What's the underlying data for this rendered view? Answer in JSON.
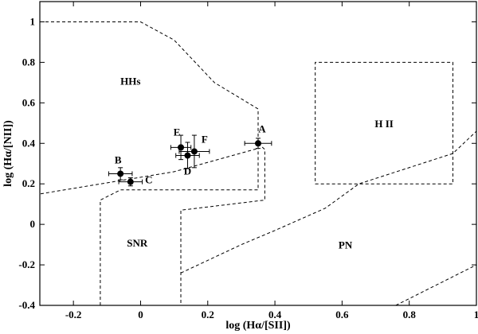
{
  "chart_data": {
    "type": "scatter",
    "xlabel": "log (Hα/[SII])",
    "ylabel": "log (Hα/[NII])",
    "xlim": [
      -0.3,
      1.0
    ],
    "ylim": [
      -0.4,
      1.1
    ],
    "xticks": [
      -0.2,
      0,
      0.2,
      0.4,
      0.6,
      0.8,
      1
    ],
    "xtick_labels": [
      "-0.2",
      "0",
      "0.2",
      "0.4",
      "0.6",
      "0.8",
      "1"
    ],
    "yticks": [
      -0.4,
      -0.2,
      0,
      0.2,
      0.4,
      0.6,
      0.8,
      1
    ],
    "ytick_labels": [
      "-0.4",
      "-0.2",
      "0",
      "0.2",
      "0.4",
      "0.6",
      "0.8",
      "1"
    ],
    "grid": false,
    "points": [
      {
        "label": "A",
        "x": 0.35,
        "y": 0.4,
        "xerr": 0.04,
        "yerr": 0.025
      },
      {
        "label": "B",
        "x": -0.06,
        "y": 0.25,
        "xerr": 0.035,
        "yerr": 0.03
      },
      {
        "label": "C",
        "x": -0.03,
        "y": 0.21,
        "xerr": 0.035,
        "yerr": 0.02
      },
      {
        "label": "D",
        "x": 0.14,
        "y": 0.34,
        "xerr": 0.035,
        "yerr": 0.065
      },
      {
        "label": "E",
        "x": 0.12,
        "y": 0.38,
        "xerr": 0.03,
        "yerr": 0.06
      },
      {
        "label": "F",
        "x": 0.16,
        "y": 0.36,
        "xerr": 0.045,
        "yerr": 0.08
      }
    ],
    "regions": [
      {
        "label": "HHs",
        "label_at": [
          -0.03,
          0.69
        ],
        "path": [
          [
            -0.3,
            1.0
          ],
          [
            0.0,
            1.0
          ],
          [
            0.1,
            0.91
          ],
          [
            0.22,
            0.7
          ],
          [
            0.35,
            0.57
          ],
          [
            0.35,
            0.375
          ],
          [
            0.1,
            0.26
          ],
          [
            -0.3,
            0.15
          ]
        ]
      },
      {
        "label": "SNR",
        "label_at": [
          -0.01,
          -0.11
        ],
        "path": [
          [
            -0.12,
            -0.4
          ],
          [
            -0.12,
            0.12
          ],
          [
            -0.06,
            0.17
          ],
          [
            0.35,
            0.17
          ],
          [
            0.35,
            0.4
          ],
          [
            0.37,
            0.37
          ],
          [
            0.37,
            0.12
          ],
          [
            0.12,
            0.07
          ],
          [
            0.12,
            -0.4
          ]
        ]
      },
      {
        "label": "PN",
        "label_at": [
          0.61,
          -0.12
        ],
        "path": [
          [
            0.12,
            -0.24
          ],
          [
            0.3,
            -0.1
          ],
          [
            0.4,
            -0.03
          ],
          [
            0.55,
            0.08
          ],
          [
            0.65,
            0.2
          ],
          [
            0.93,
            0.35
          ],
          [
            1.0,
            0.46
          ]
        ]
      },
      {
        "label": "H II",
        "label_at": [
          0.725,
          0.48
        ],
        "path": [
          [
            0.52,
            0.2
          ],
          [
            0.93,
            0.2
          ],
          [
            0.93,
            0.8
          ],
          [
            0.52,
            0.8
          ],
          [
            0.52,
            0.2
          ]
        ]
      },
      {
        "path": [
          [
            0.76,
            -0.4
          ],
          [
            1.0,
            -0.2
          ]
        ]
      }
    ]
  }
}
